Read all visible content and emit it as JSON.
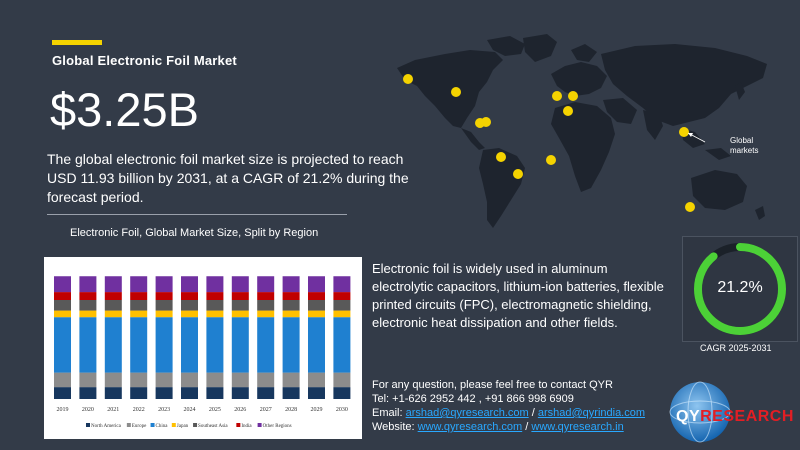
{
  "header": {
    "title": "Global Electronic Foil Market",
    "market_value": "$3.25B",
    "description": "The global electronic foil market size is projected to reach USD 11.93 billion by 2031, at a CAGR of 21.2% during the forecast period."
  },
  "map": {
    "label": "Global markets"
  },
  "chart_data": {
    "type": "bar",
    "stacked": true,
    "title": "Electronic Foil, Global Market Size, Split by Region",
    "categories": [
      "2019",
      "2020",
      "2021",
      "2022",
      "2023",
      "2024",
      "2025",
      "2026",
      "2027",
      "2028",
      "2029",
      "2030"
    ],
    "series": [
      {
        "name": "North America",
        "color": "#17375e",
        "values": [
          9,
          9,
          9,
          9,
          9,
          9,
          9,
          9,
          9,
          9,
          9,
          9
        ]
      },
      {
        "name": "Europe",
        "color": "#8c8c8c",
        "values": [
          11,
          11,
          11,
          11,
          11,
          11,
          11,
          11,
          11,
          11,
          11,
          11
        ]
      },
      {
        "name": "China",
        "color": "#1f80d0",
        "values": [
          42,
          42,
          42,
          42,
          42,
          42,
          42,
          42,
          42,
          42,
          42,
          42
        ]
      },
      {
        "name": "Japan",
        "color": "#ffc000",
        "values": [
          5,
          5,
          5,
          5,
          5,
          5,
          5,
          5,
          5,
          5,
          5,
          5
        ]
      },
      {
        "name": "Southeast Asia",
        "color": "#595959",
        "values": [
          8,
          8,
          8,
          8,
          8,
          8,
          8,
          8,
          8,
          8,
          8,
          8
        ]
      },
      {
        "name": "India",
        "color": "#c00000",
        "values": [
          6,
          6,
          6,
          6,
          6,
          6,
          6,
          6,
          6,
          6,
          6,
          6
        ]
      },
      {
        "name": "Other Regions",
        "color": "#7030a0",
        "values": [
          12,
          12,
          12,
          12,
          12,
          12,
          12,
          12,
          12,
          12,
          12,
          12
        ]
      }
    ],
    "ylim": [
      0,
      100
    ],
    "legend": "bottom",
    "grid": false
  },
  "info": {
    "text": "Electronic foil is widely used in aluminum electrolytic capacitors, lithium-ion batteries, flexible printed circuits (FPC), electromagnetic shielding, electronic heat dissipation and other fields."
  },
  "cagr": {
    "value": "21.2%",
    "fraction": 0.212,
    "label": "CAGR 2025-2031",
    "ring_color": "#4cd137"
  },
  "contact": {
    "intro": "For any question, please feel free to contact QYR",
    "tel": "Tel: +1-626 2952 442 , +91 866 998 6909",
    "email_label": "Email: ",
    "email_1": "arshad@qyresearch.com",
    "email_2": "arshad@qyrindia.com",
    "website_label": "Website: ",
    "website_1": "www.qyresearch.com",
    "website_2": "www.qyresearch.in",
    "separator": " / "
  },
  "logo": {
    "q": "QY",
    "r": "RESEARCH"
  },
  "colors": {
    "background": "#333b48",
    "accent": "#f5d300",
    "marker": "#f5d300",
    "land": "#1f2530"
  }
}
